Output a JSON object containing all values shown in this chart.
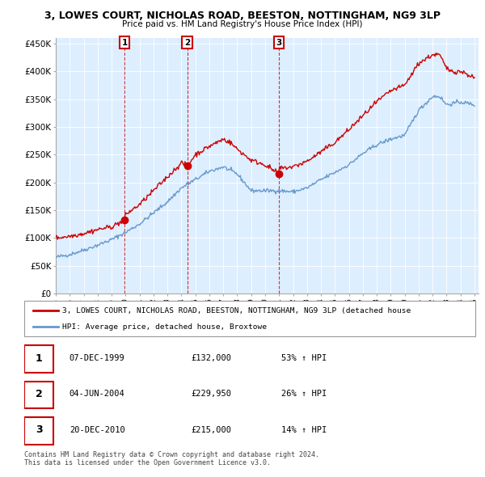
{
  "title": "3, LOWES COURT, NICHOLAS ROAD, BEESTON, NOTTINGHAM, NG9 3LP",
  "subtitle": "Price paid vs. HM Land Registry's House Price Index (HPI)",
  "ylabel_ticks": [
    "£0",
    "£50K",
    "£100K",
    "£150K",
    "£200K",
    "£250K",
    "£300K",
    "£350K",
    "£400K",
    "£450K"
  ],
  "ytick_values": [
    0,
    50000,
    100000,
    150000,
    200000,
    250000,
    300000,
    350000,
    400000,
    450000
  ],
  "ylim": [
    0,
    460000
  ],
  "hpi_color": "#6699cc",
  "price_color": "#cc0000",
  "bg_color": "#ddeeff",
  "sales": [
    {
      "date": "07-DEC-1999",
      "price": 132000,
      "label": "1",
      "pct": "53% ↑ HPI"
    },
    {
      "date": "04-JUN-2004",
      "price": 229950,
      "label": "2",
      "pct": "26% ↑ HPI"
    },
    {
      "date": "20-DEC-2010",
      "price": 215000,
      "label": "3",
      "pct": "14% ↑ HPI"
    }
  ],
  "sale_years": [
    1999.92,
    2004.42,
    2010.97
  ],
  "footer": "Contains HM Land Registry data © Crown copyright and database right 2024.\nThis data is licensed under the Open Government Licence v3.0.",
  "legend_line1": "3, LOWES COURT, NICHOLAS ROAD, BEESTON, NOTTINGHAM, NG9 3LP (detached house",
  "legend_line2": "HPI: Average price, detached house, Broxtowe"
}
